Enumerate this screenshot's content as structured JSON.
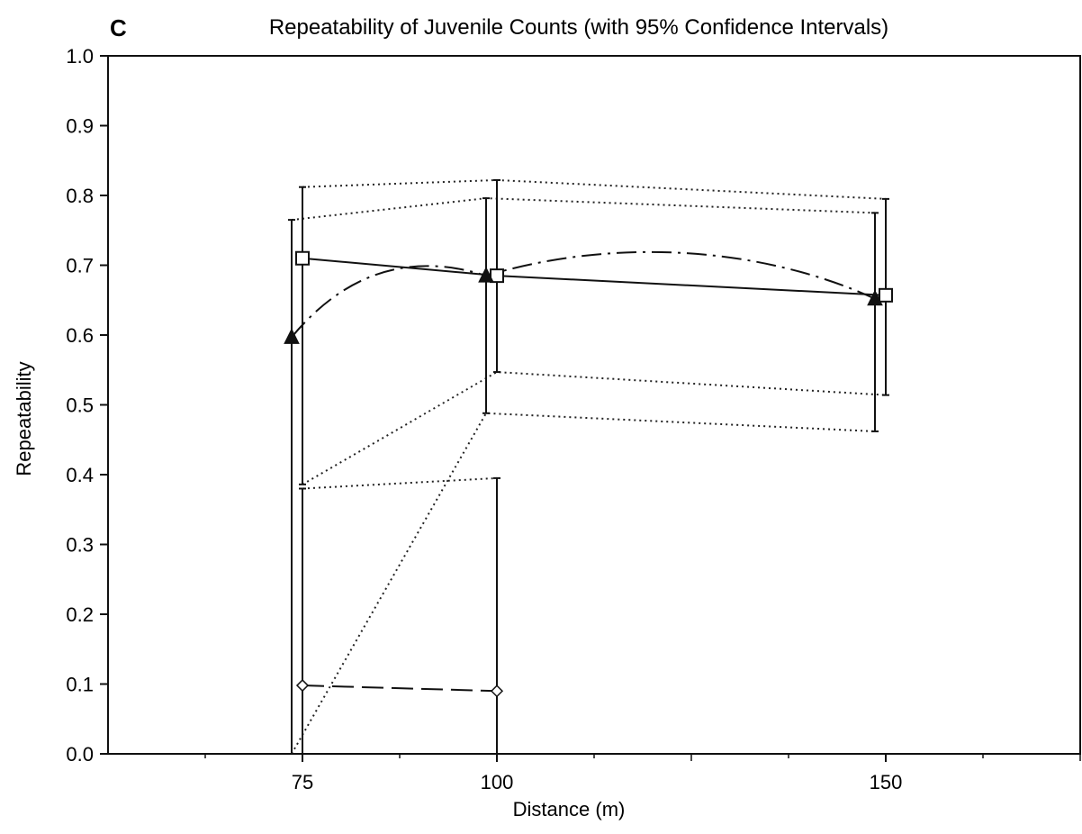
{
  "panel_label": "C",
  "chart_data": {
    "type": "line",
    "title": "Repeatability of Juvenile Counts (with 95% Confidence Intervals)",
    "xlabel": "Distance (m)",
    "ylabel": "Repeatability",
    "x_ticks": [
      "75",
      "100",
      "150"
    ],
    "x_tick_values": [
      75,
      100,
      150
    ],
    "xlim": [
      50,
      175
    ],
    "y_ticks": [
      "0.0",
      "0.1",
      "0.2",
      "0.3",
      "0.4",
      "0.5",
      "0.6",
      "0.7",
      "0.8",
      "0.9",
      "1.0"
    ],
    "ylim": [
      0.0,
      1.0
    ],
    "grid": false,
    "series": [
      {
        "marker": "square",
        "line_style": "solid",
        "x": [
          75,
          100,
          150
        ],
        "y": [
          0.71,
          0.685,
          0.657
        ],
        "ci_low": [
          0.386,
          0.547,
          0.514
        ],
        "ci_high": [
          0.812,
          0.822,
          0.795
        ]
      },
      {
        "marker": "triangle",
        "line_style": "dash-dot",
        "x": [
          75,
          100,
          150
        ],
        "y": [
          0.597,
          0.685,
          0.652
        ],
        "ci_low": [
          0.0,
          0.488,
          0.462
        ],
        "ci_high": [
          0.765,
          0.796,
          0.775
        ]
      },
      {
        "marker": "diamond",
        "line_style": "long-dash",
        "x": [
          75,
          100
        ],
        "y": [
          0.098,
          0.09
        ],
        "ci_low": [
          0.0,
          0.0
        ],
        "ci_high": [
          0.38,
          0.395
        ]
      }
    ]
  }
}
